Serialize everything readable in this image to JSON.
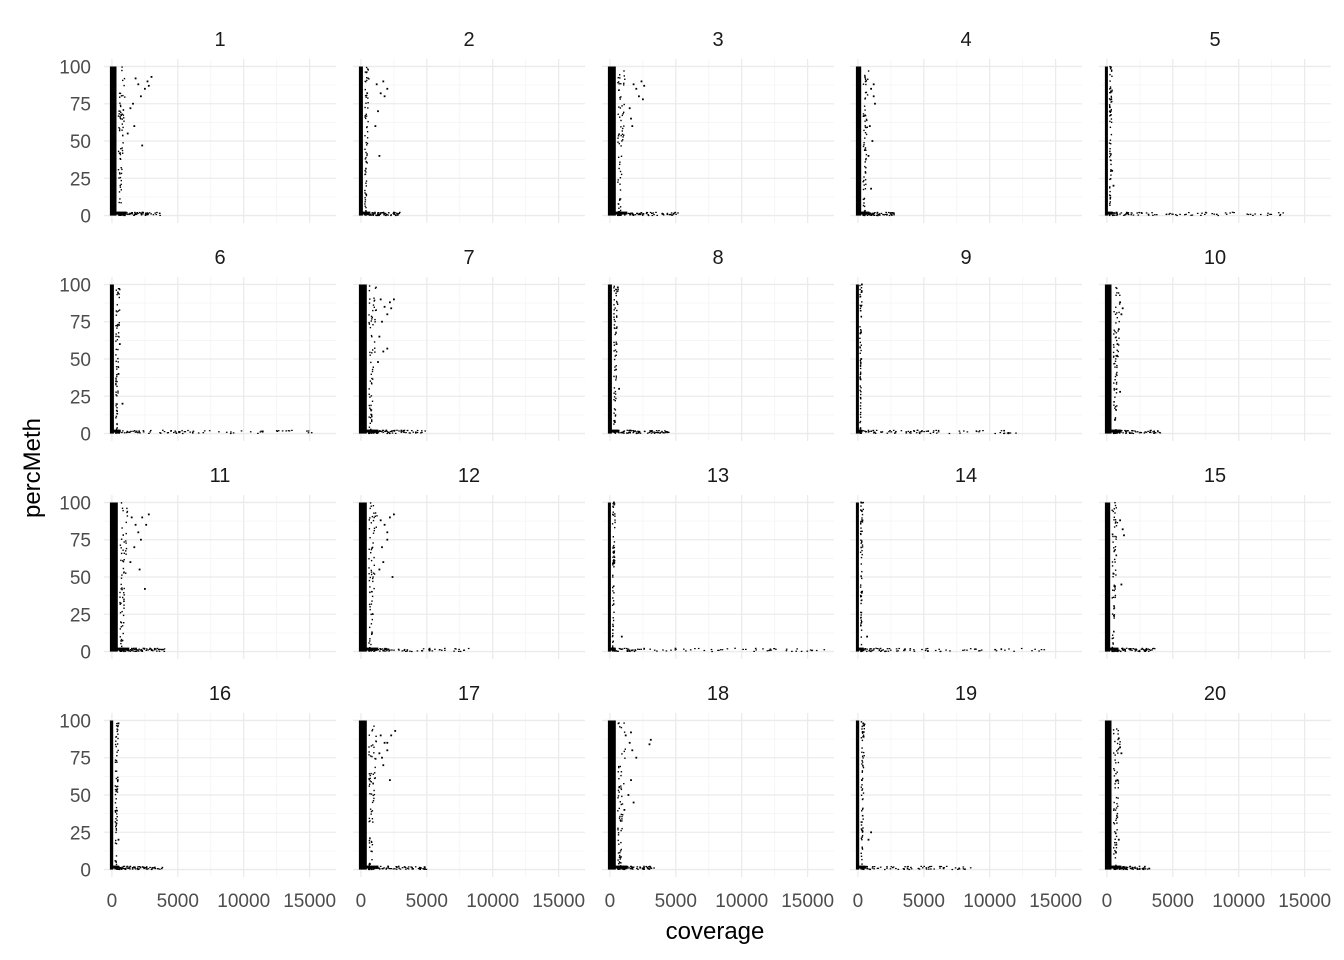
{
  "chart_data": {
    "type": "scatter",
    "facet_by": "chromosome",
    "panels": [
      "1",
      "2",
      "3",
      "4",
      "5",
      "6",
      "7",
      "8",
      "9",
      "10",
      "11",
      "12",
      "13",
      "14",
      "15",
      "16",
      "17",
      "18",
      "19",
      "20"
    ],
    "xlabel": "coverage",
    "ylabel": "percMeth",
    "xlim": [
      -600,
      17000
    ],
    "ylim": [
      -5,
      105
    ],
    "x_ticks": [
      0,
      5000,
      10000,
      15000
    ],
    "x_tick_labels": [
      "0",
      "5000",
      "10000",
      "15000"
    ],
    "y_ticks": [
      0,
      25,
      50,
      75,
      100
    ],
    "y_tick_labels": [
      "0",
      "25",
      "50",
      "75",
      "100"
    ],
    "grid": true,
    "point_color": "#000000",
    "series": [
      {
        "panel": "1",
        "dense_cov": 500,
        "tail_cov": 3800,
        "high_points": [
          [
            1800,
            92
          ],
          [
            2000,
            88
          ],
          [
            2200,
            80
          ],
          [
            2500,
            85
          ],
          [
            2700,
            90
          ],
          [
            3000,
            93
          ],
          [
            1600,
            75
          ],
          [
            1400,
            72
          ],
          [
            2300,
            47
          ],
          [
            1700,
            60
          ],
          [
            1200,
            55
          ],
          [
            2800,
            87
          ]
        ]
      },
      {
        "panel": "2",
        "dense_cov": 300,
        "tail_cov": 3000,
        "high_points": [
          [
            1200,
            88
          ],
          [
            1500,
            82
          ],
          [
            1800,
            80
          ],
          [
            2000,
            85
          ],
          [
            1300,
            70
          ],
          [
            1100,
            60
          ],
          [
            1400,
            40
          ],
          [
            1700,
            90
          ]
        ]
      },
      {
        "panel": "3",
        "dense_cov": 600,
        "tail_cov": 5200,
        "high_points": [
          [
            1800,
            88
          ],
          [
            2000,
            85
          ],
          [
            2200,
            80
          ],
          [
            2400,
            90
          ],
          [
            2600,
            87
          ],
          [
            1500,
            72
          ],
          [
            1600,
            65
          ],
          [
            1700,
            60
          ],
          [
            2500,
            78
          ]
        ]
      },
      {
        "panel": "4",
        "dense_cov": 400,
        "tail_cov": 2900,
        "high_points": [
          [
            1000,
            85
          ],
          [
            1200,
            80
          ],
          [
            1300,
            75
          ],
          [
            900,
            60
          ],
          [
            1100,
            50
          ],
          [
            800,
            40
          ],
          [
            1000,
            18
          ],
          [
            1200,
            88
          ]
        ]
      },
      {
        "panel": "5",
        "dense_cov": 200,
        "tail_cov": 13500,
        "high_points": [
          [
            500,
            20
          ],
          [
            400,
            30
          ]
        ]
      },
      {
        "panel": "6",
        "dense_cov": 300,
        "tail_cov": 15500,
        "high_points": [
          [
            600,
            60
          ],
          [
            500,
            40
          ],
          [
            800,
            20
          ]
        ]
      },
      {
        "panel": "7",
        "dense_cov": 600,
        "tail_cov": 5000,
        "high_points": [
          [
            1500,
            90
          ],
          [
            1800,
            85
          ],
          [
            2000,
            80
          ],
          [
            2200,
            88
          ],
          [
            2500,
            90
          ],
          [
            1600,
            75
          ],
          [
            1400,
            65
          ],
          [
            1700,
            55
          ],
          [
            2000,
            57
          ],
          [
            1300,
            48
          ],
          [
            2300,
            84
          ]
        ]
      },
      {
        "panel": "8",
        "dense_cov": 300,
        "tail_cov": 4500,
        "high_points": [
          [
            600,
            98
          ],
          [
            500,
            60
          ],
          [
            700,
            30
          ]
        ]
      },
      {
        "panel": "9",
        "dense_cov": 150,
        "tail_cov": 12000,
        "high_points": [
          [
            300,
            100
          ],
          [
            250,
            50
          ]
        ]
      },
      {
        "panel": "10",
        "dense_cov": 500,
        "tail_cov": 4200,
        "high_points": [
          [
            1000,
            88
          ],
          [
            1200,
            84
          ],
          [
            1100,
            80
          ],
          [
            900,
            70
          ],
          [
            800,
            60
          ],
          [
            1000,
            28
          ]
        ]
      },
      {
        "panel": "11",
        "dense_cov": 600,
        "tail_cov": 4000,
        "high_points": [
          [
            1500,
            90
          ],
          [
            1800,
            85
          ],
          [
            2000,
            80
          ],
          [
            2300,
            90
          ],
          [
            2600,
            85
          ],
          [
            2800,
            92
          ],
          [
            1700,
            70
          ],
          [
            2100,
            55
          ],
          [
            2500,
            42
          ],
          [
            1400,
            60
          ],
          [
            2200,
            75
          ]
        ]
      },
      {
        "panel": "12",
        "dense_cov": 600,
        "tail_cov": 8500,
        "high_points": [
          [
            1500,
            88
          ],
          [
            1800,
            85
          ],
          [
            2000,
            80
          ],
          [
            2200,
            90
          ],
          [
            2500,
            92
          ],
          [
            1600,
            70
          ],
          [
            1700,
            60
          ],
          [
            2400,
            50
          ],
          [
            1400,
            55
          ],
          [
            2000,
            75
          ]
        ]
      },
      {
        "panel": "13",
        "dense_cov": 200,
        "tail_cov": 16500,
        "high_points": [
          [
            300,
            100
          ],
          [
            300,
            60
          ],
          [
            900,
            10
          ]
        ]
      },
      {
        "panel": "14",
        "dense_cov": 200,
        "tail_cov": 15000,
        "high_points": [
          [
            250,
            100
          ],
          [
            300,
            40
          ],
          [
            700,
            10
          ]
        ]
      },
      {
        "panel": "15",
        "dense_cov": 400,
        "tail_cov": 3700,
        "high_points": [
          [
            1000,
            88
          ],
          [
            1200,
            82
          ],
          [
            1300,
            78
          ],
          [
            1100,
            45
          ]
        ]
      },
      {
        "panel": "16",
        "dense_cov": 250,
        "tail_cov": 3900,
        "high_points": [
          [
            500,
            98
          ],
          [
            450,
            60
          ],
          [
            500,
            20
          ]
        ]
      },
      {
        "panel": "17",
        "dense_cov": 600,
        "tail_cov": 5000,
        "high_points": [
          [
            1500,
            90
          ],
          [
            1800,
            85
          ],
          [
            2000,
            80
          ],
          [
            2300,
            90
          ],
          [
            2600,
            93
          ],
          [
            1600,
            75
          ],
          [
            1700,
            70
          ],
          [
            2200,
            60
          ],
          [
            1400,
            78
          ],
          [
            2000,
            85
          ]
        ]
      },
      {
        "panel": "18",
        "dense_cov": 600,
        "tail_cov": 3400,
        "high_points": [
          [
            1200,
            90
          ],
          [
            1500,
            85
          ],
          [
            1700,
            80
          ],
          [
            2000,
            75
          ],
          [
            3100,
            87
          ],
          [
            3000,
            84
          ],
          [
            1600,
            60
          ],
          [
            1400,
            50
          ],
          [
            1800,
            45
          ],
          [
            1100,
            40
          ],
          [
            1600,
            92
          ]
        ]
      },
      {
        "panel": "19",
        "dense_cov": 250,
        "tail_cov": 8700,
        "high_points": [
          [
            400,
            98
          ],
          [
            300,
            60
          ],
          [
            1000,
            25
          ],
          [
            800,
            20
          ]
        ]
      },
      {
        "panel": "20",
        "dense_cov": 500,
        "tail_cov": 3300,
        "high_points": [
          [
            900,
            88
          ],
          [
            1000,
            82
          ],
          [
            1100,
            78
          ],
          [
            800,
            60
          ],
          [
            900,
            20
          ]
        ]
      }
    ]
  }
}
